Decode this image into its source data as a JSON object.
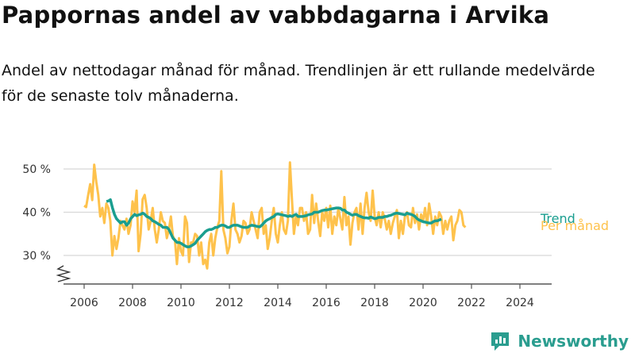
{
  "title": "Pappornas andel av vabbdagarna i Arvika",
  "subtitle": "Andel av nettodagar månad för månad. Trendlinjen är ett rullande medelvärde för de senaste tolv månaderna.",
  "brand": "Newsworthy",
  "colors": {
    "monthly": "#fec24c",
    "trend": "#1a9e8f",
    "brand": "#2a9d8f"
  },
  "chart_data": {
    "type": "line",
    "title": "Pappornas andel av vabbdagarna i Arvika",
    "ylabel": "",
    "xlabel": "",
    "y_ticks": [
      30,
      40,
      50
    ],
    "y_tick_labels": [
      "30 %",
      "40 %",
      "50 %"
    ],
    "x_ticks": [
      2006,
      2008,
      2010,
      2012,
      2014,
      2016,
      2018,
      2020,
      2022,
      2024
    ],
    "x_tick_labels": [
      "2006",
      "2008",
      "2010",
      "2012",
      "2014",
      "2016",
      "2018",
      "2020",
      "2022",
      "2024"
    ],
    "ylim": [
      24,
      52
    ],
    "xlim": [
      2005.5,
      2025.2
    ],
    "axis_break": true,
    "grid": true,
    "series": [
      {
        "name": "Per månad",
        "x_start": 2006.0,
        "x_step_months": 1,
        "values": [
          41.5,
          41.2,
          44.0,
          46.5,
          42.8,
          51.0,
          47.0,
          44.0,
          39.0,
          41.0,
          37.5,
          42.0,
          41.0,
          38.0,
          30.0,
          34.5,
          31.5,
          34.0,
          38.0,
          37.0,
          36.0,
          38.5,
          35.0,
          37.0,
          42.5,
          40.0,
          45.0,
          31.0,
          35.0,
          43.0,
          44.0,
          41.0,
          36.0,
          38.0,
          41.0,
          36.0,
          33.0,
          36.0,
          40.0,
          38.0,
          37.5,
          34.0,
          36.0,
          39.0,
          34.5,
          33.5,
          28.0,
          34.0,
          31.0,
          30.0,
          39.0,
          37.5,
          28.5,
          33.0,
          33.0,
          35.0,
          34.5,
          30.0,
          33.0,
          28.0,
          29.0,
          27.0,
          33.0,
          35.0,
          30.0,
          34.0,
          36.5,
          38.0,
          49.5,
          36.0,
          34.0,
          30.5,
          32.0,
          38.0,
          42.0,
          36.0,
          35.0,
          33.0,
          34.5,
          38.0,
          37.5,
          35.0,
          36.0,
          40.0,
          38.0,
          36.0,
          34.0,
          40.0,
          41.0,
          35.0,
          37.0,
          31.5,
          34.0,
          38.0,
          41.0,
          35.0,
          33.0,
          37.0,
          40.0,
          36.0,
          35.0,
          38.0,
          51.5,
          43.0,
          35.0,
          39.0,
          37.0,
          41.0,
          41.0,
          38.0,
          40.0,
          35.0,
          36.0,
          44.0,
          37.5,
          42.0,
          38.0,
          34.5,
          40.0,
          38.0,
          41.0,
          36.5,
          41.5,
          35.0,
          39.0,
          37.0,
          41.0,
          38.5,
          36.0,
          43.5,
          37.0,
          39.0,
          32.5,
          37.5,
          40.0,
          41.0,
          36.0,
          42.0,
          35.0,
          41.0,
          44.5,
          40.0,
          38.0,
          45.0,
          39.0,
          37.0,
          40.0,
          36.5,
          40.0,
          38.5,
          36.0,
          38.0,
          35.0,
          37.5,
          39.0,
          40.5,
          34.0,
          38.0,
          35.0,
          39.0,
          40.0,
          37.0,
          36.5,
          41.0,
          37.5,
          39.5,
          36.0,
          39.5,
          38.0,
          41.0,
          37.0,
          42.0,
          39.0,
          35.0,
          39.0,
          37.0,
          40.0,
          39.0,
          35.0,
          38.0,
          36.0,
          38.0,
          39.0,
          33.5,
          37.0,
          38.0,
          40.5,
          40.0,
          37.0,
          36.5
        ]
      },
      {
        "name": "Trend",
        "x_start": 2006.92,
        "x_step_months": 1,
        "values": [
          42.5,
          42.6,
          42.9,
          41.0,
          39.5,
          38.5,
          38.0,
          37.5,
          37.8,
          37.8,
          37.0,
          37.5,
          38.5,
          39.0,
          39.5,
          39.2,
          39.4,
          39.5,
          39.8,
          39.5,
          39.0,
          38.8,
          38.5,
          38.0,
          37.8,
          37.5,
          37.2,
          37.0,
          36.5,
          36.5,
          36.5,
          36.0,
          35.0,
          34.0,
          33.5,
          33.0,
          33.0,
          32.8,
          32.5,
          32.2,
          32.0,
          32.0,
          32.2,
          32.5,
          32.8,
          33.5,
          34.0,
          34.5,
          35.0,
          35.5,
          35.8,
          36.0,
          36.0,
          36.2,
          36.5,
          36.5,
          36.8,
          37.0,
          37.0,
          36.8,
          36.5,
          36.5,
          36.8,
          37.0,
          37.0,
          37.0,
          36.8,
          36.6,
          36.5,
          36.5,
          36.5,
          36.8,
          37.0,
          36.9,
          36.8,
          36.7,
          36.6,
          37.0,
          37.5,
          38.0,
          38.3,
          38.5,
          38.8,
          39.0,
          39.5,
          39.6,
          39.5,
          39.4,
          39.3,
          39.2,
          39.0,
          39.2,
          39.0,
          39.3,
          39.5,
          39.0,
          39.0,
          39.0,
          39.1,
          39.2,
          39.4,
          39.5,
          39.6,
          40.0,
          40.0,
          40.0,
          40.2,
          40.4,
          40.5,
          40.5,
          40.6,
          40.7,
          40.8,
          40.9,
          41.0,
          41.0,
          40.9,
          40.5,
          40.5,
          40.0,
          39.8,
          39.5,
          39.3,
          39.5,
          39.5,
          39.2,
          39.0,
          38.8,
          38.7,
          38.7,
          38.6,
          38.9,
          38.7,
          38.5,
          38.6,
          38.8,
          38.8,
          38.8,
          39.0,
          39.0,
          39.2,
          39.3,
          39.5,
          39.7,
          39.8,
          39.7,
          39.6,
          39.5,
          39.4,
          39.8,
          39.6,
          39.5,
          39.3,
          39.0,
          38.5,
          38.2,
          38.0,
          37.8,
          37.7,
          37.6,
          37.5,
          37.5,
          37.8,
          38.0,
          38.0,
          38.2,
          38.4
        ]
      }
    ]
  }
}
